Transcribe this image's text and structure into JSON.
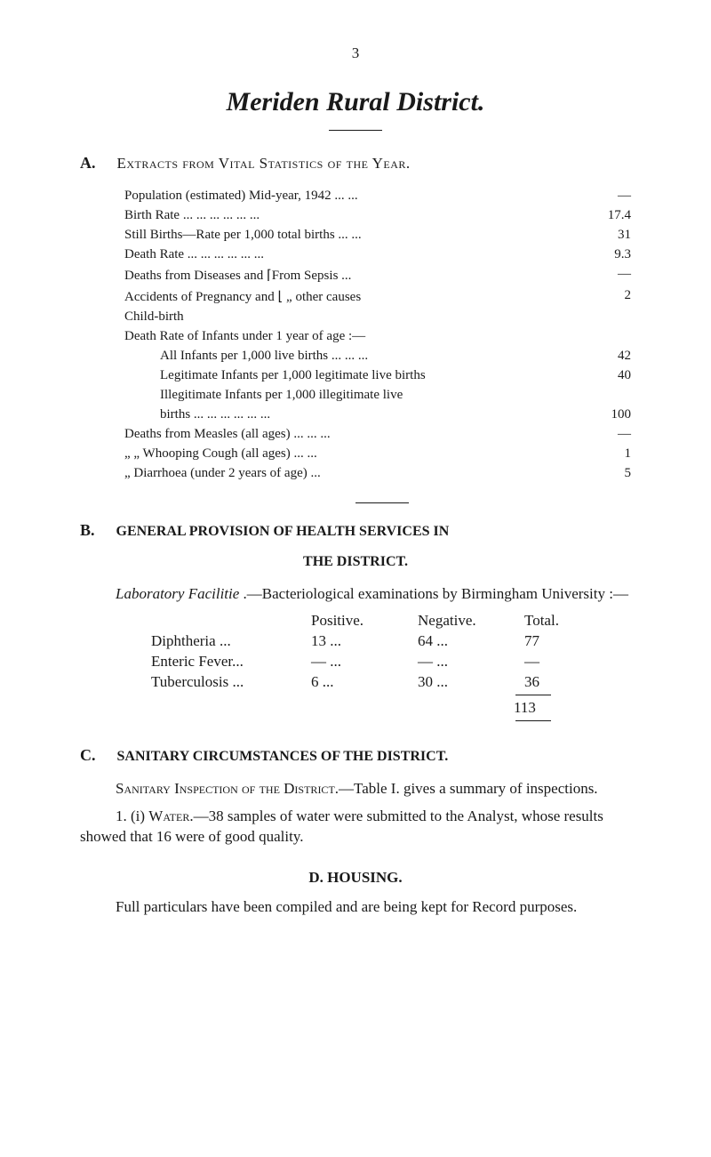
{
  "pageNumber": "3",
  "mainTitle": "Meriden Rural District.",
  "sectionA": {
    "letter": "A.",
    "title": "Extracts from Vital Statistics of the Year.",
    "rows": [
      {
        "label": "Population (estimated) Mid-year, 1942    ...    ...",
        "value": "—"
      },
      {
        "label": "Birth Rate    ...    ...    ...    ...    ...    ...",
        "value": "17.4"
      },
      {
        "label": "Still Births—Rate per 1,000 total births    ...    ...",
        "value": "31"
      },
      {
        "label": "Death Rate    ...    ...    ...    ...    ...    ...",
        "value": "9.3"
      },
      {
        "label": "Deaths from Diseases and ⌈From Sepsis    ...",
        "value": "—"
      },
      {
        "label": "   Accidents of Pregnancy and ⌊   „    other causes",
        "value": "2"
      },
      {
        "label": "   Child-birth",
        "value": ""
      },
      {
        "label": "Death Rate of Infants under 1 year of age :—",
        "value": ""
      },
      {
        "label": "All Infants per 1,000 live births ...    ...    ...",
        "value": "42",
        "indent": true
      },
      {
        "label": "Legitimate Infants per 1,000 legitimate live births",
        "value": "40",
        "indent": true
      },
      {
        "label": "Illegitimate Infants per 1,000 illegitimate live",
        "value": "",
        "indent": true
      },
      {
        "label": "   births    ...    ...    ...    ...    ...    ...",
        "value": "100",
        "indent": true
      },
      {
        "label": "Deaths from Measles (all ages)    ...    ...    ...",
        "value": "—"
      },
      {
        "label": "   „    „    Whooping Cough (all ages)    ...    ...",
        "value": "1"
      },
      {
        "label": "   „    Diarrhoea (under 2 years of age)    ...",
        "value": "5"
      }
    ]
  },
  "sectionB": {
    "letter": "B.",
    "titleLine1": "GENERAL PROVISION OF HEALTH SERVICES IN",
    "titleLine2": "THE DISTRICT.",
    "intro1": "Laboratory Facilitie",
    "intro2": " .—Bacteriological examinations by Birmingham University :—",
    "tableHeaders": {
      "positive": "Positive.",
      "negative": "Negative.",
      "total": "Total."
    },
    "tableRows": [
      {
        "name": "Diphtheria    ...",
        "pos": "13    ...",
        "neg": "64    ...",
        "tot": "77"
      },
      {
        "name": "Enteric Fever...",
        "pos": "—    ...",
        "neg": "—    ...",
        "tot": "—"
      },
      {
        "name": "Tuberculosis ...",
        "pos": "6    ...",
        "neg": "30    ...",
        "tot": "36"
      }
    ],
    "total": "113"
  },
  "sectionC": {
    "letter": "C.",
    "title": "SANITARY CIRCUMSTANCES OF THE DISTRICT.",
    "para1a": "Sanitary Inspection of the District.",
    "para1b": "—Table I. gives a summary of inspections.",
    "para2a": "1.   (i) ",
    "para2b": "Water.",
    "para2c": "—38 samples of water were submitted to the Analyst, whose results showed that 16 were of good quality."
  },
  "sectionD": {
    "title": "D.  HOUSING.",
    "para": "Full particulars have been compiled and are being kept for Record purposes."
  }
}
